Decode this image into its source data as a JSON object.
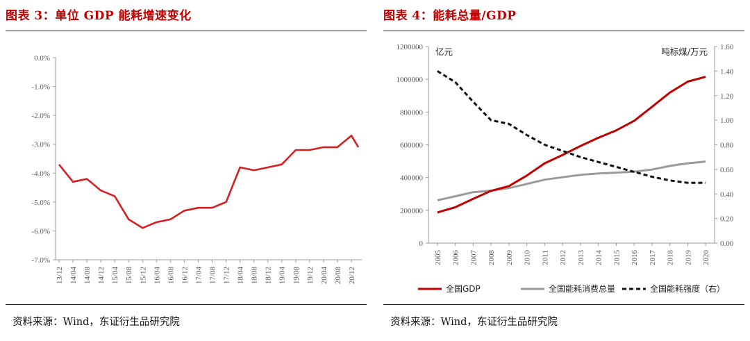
{
  "left": {
    "title": "图表 3：单位 GDP 能耗增速变化",
    "source": "资料来源：Wind，东证衍生品研究院",
    "chart_data": {
      "type": "line",
      "title": "图表 3：单位 GDP 能耗增速变化",
      "xlabel": "",
      "ylabel": "",
      "ylim": [
        -7.0,
        0.0
      ],
      "y_ticks": [
        "0.0%",
        "-1.0%",
        "-2.0%",
        "-3.0%",
        "-4.0%",
        "-5.0%",
        "-6.0%",
        "-7.0%"
      ],
      "x_ticks": [
        "13/12",
        "14/04",
        "14/08",
        "14/12",
        "15/04",
        "15/08",
        "15/12",
        "16/04",
        "16/08",
        "16/12",
        "17/04",
        "17/08",
        "17/12",
        "18/04",
        "18/08",
        "18/12",
        "19/04",
        "19/08",
        "19/12",
        "20/04",
        "20/08",
        "20/12"
      ],
      "grid": false,
      "color": "#d42020",
      "series": [
        {
          "x": [
            "13/12",
            "14/02",
            "14/04",
            "14/06",
            "14/08",
            "14/10",
            "14/12",
            "15/02",
            "15/04",
            "15/06",
            "15/08",
            "15/10",
            "15/12",
            "16/02",
            "16/04",
            "16/06",
            "16/08",
            "16/10",
            "16/12",
            "17/02",
            "17/04",
            "17/06",
            "17/08",
            "17/10",
            "17/12",
            "18/02",
            "18/04",
            "18/06",
            "18/08",
            "18/10",
            "18/12",
            "19/02",
            "19/04",
            "19/06",
            "19/08",
            "19/10",
            "19/12",
            "20/02",
            "20/04",
            "20/06",
            "20/08",
            "20/10",
            "20/12",
            "21/02"
          ],
          "values": [
            -3.7,
            -4.0,
            -4.3,
            -4.25,
            -4.2,
            -4.4,
            -4.6,
            -4.7,
            -4.8,
            -5.2,
            -5.6,
            -5.75,
            -5.9,
            -5.8,
            -5.7,
            -5.65,
            -5.6,
            -5.45,
            -5.3,
            -5.25,
            -5.2,
            -5.2,
            -5.2,
            -5.1,
            -5.0,
            -4.4,
            -3.8,
            -3.85,
            -3.9,
            -3.85,
            -3.8,
            -3.75,
            -3.7,
            -3.45,
            -3.2,
            -3.2,
            -3.2,
            -3.15,
            -3.1,
            -3.1,
            -3.1,
            -2.9,
            -2.7,
            -3.1
          ]
        }
      ]
    }
  },
  "right": {
    "title": "图表 4：能耗总量/GDP",
    "source": "资料来源：Wind，东证衍生品研究院",
    "chart_data": {
      "type": "line",
      "title": "图表 4：能耗总量/GDP",
      "left_unit": "亿元",
      "right_unit": "吨标煤/万元",
      "x": [
        "2005",
        "2006",
        "2007",
        "2008",
        "2009",
        "2010",
        "2011",
        "2012",
        "2013",
        "2014",
        "2015",
        "2016",
        "2017",
        "2018",
        "2019",
        "2020"
      ],
      "ylim_left": [
        0,
        1200000
      ],
      "y_ticks_left": [
        "0",
        "200000",
        "400000",
        "600000",
        "800000",
        "1000000",
        "1200000"
      ],
      "ylim_right": [
        0.0,
        1.6
      ],
      "y_ticks_right": [
        "0.00",
        "0.20",
        "0.40",
        "0.60",
        "0.80",
        "1.00",
        "1.20",
        "1.40",
        "1.60"
      ],
      "grid": false,
      "legend": "bottom",
      "series": [
        {
          "name": "全国GDP",
          "axis": "left",
          "color": "#c00000",
          "style": "solid",
          "values": [
            187000,
            219000,
            270000,
            319000,
            348000,
            412000,
            487000,
            538000,
            593000,
            643000,
            688000,
            746000,
            832000,
            919000,
            986000,
            1015000
          ]
        },
        {
          "name": "全国能耗消费总量",
          "axis": "left",
          "color": "#9a9a9a",
          "style": "solid",
          "values": [
            261000,
            286000,
            311000,
            320000,
            336000,
            361000,
            387000,
            402000,
            417000,
            425000,
            430000,
            436000,
            449000,
            471000,
            487000,
            498000
          ]
        },
        {
          "name": "全国能耗强度（右）",
          "axis": "right",
          "color": "#111111",
          "style": "dashed",
          "values": [
            1.4,
            1.31,
            1.15,
            1.0,
            0.97,
            0.88,
            0.8,
            0.75,
            0.7,
            0.66,
            0.62,
            0.58,
            0.54,
            0.51,
            0.49,
            0.49
          ]
        }
      ]
    }
  }
}
